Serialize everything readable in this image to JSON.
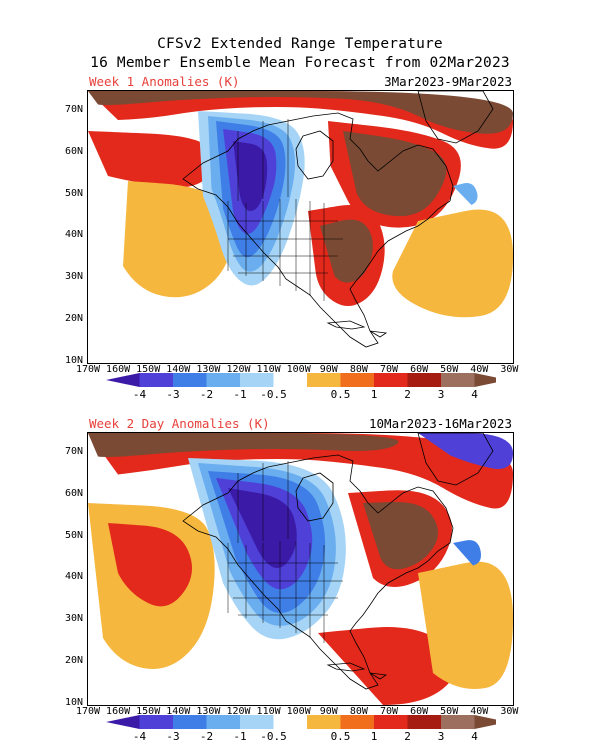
{
  "title_line1": "CFSv2 Extended Range Temperature",
  "title_line2": "16 Member Ensemble Mean Forecast from 02Mar2023",
  "colors": {
    "neg4": "#3c1aa8",
    "neg3": "#4f40d8",
    "neg2": "#3f7ee6",
    "neg1": "#6aaef0",
    "neg05": "#a6d4f6",
    "pos05": "#f6b73e",
    "pos1": "#f06e1c",
    "pos2": "#e2291b",
    "pos3": "#a61b12",
    "pos4": "#9c6f5f",
    "pos4b": "#7a4a34",
    "label_red": "#e8403a"
  },
  "lat_labels": [
    "70N",
    "60N",
    "50N",
    "40N",
    "30N",
    "20N",
    "10N"
  ],
  "lon_labels": [
    "170W",
    "160W",
    "150W",
    "140W",
    "130W",
    "120W",
    "110W",
    "100W",
    "90W",
    "80W",
    "70W",
    "60W",
    "50W",
    "40W",
    "30W"
  ],
  "colorbar_labels": [
    "-4",
    "-3",
    "-2",
    "-1",
    "-0.5",
    "0.5",
    "1",
    "2",
    "3",
    "4"
  ],
  "panels": [
    {
      "label": "Week 1 Anomalies (K)",
      "date_range": "3Mar2023-9Mar2023"
    },
    {
      "label": "Week 2 Day Anomalies (K)",
      "date_range": "10Mar2023-16Mar2023"
    }
  ]
}
